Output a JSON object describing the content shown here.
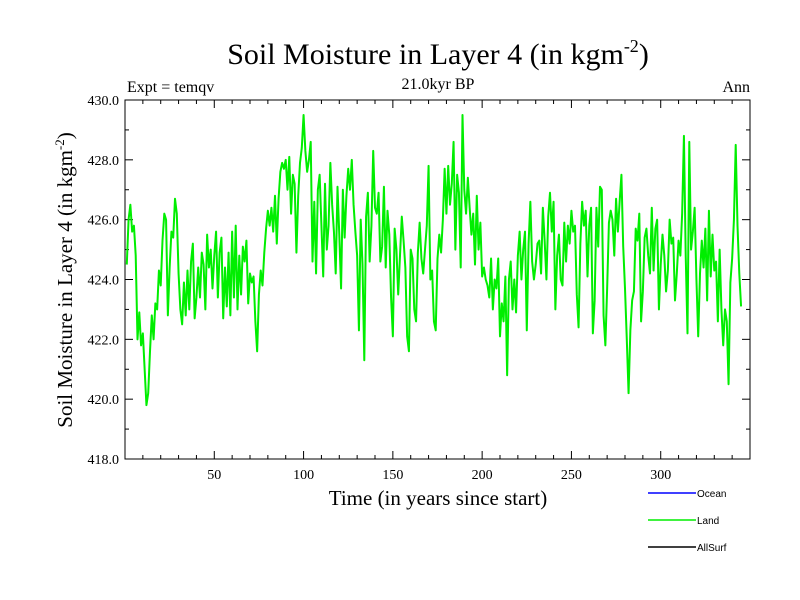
{
  "chart_data": {
    "type": "line",
    "title": "Soil Moisture in Layer 4 (in kgm",
    "title_sup": "-2",
    "title_close": ")",
    "subtitle": "21.0kyr BP",
    "left_label": "Expt = temqv",
    "right_label": "Ann",
    "xlabel": "Time (in years since start)",
    "ylabel": "Soil Moisture in Layer 4 (in kgm",
    "ylabel_sup": "-2",
    "ylabel_close": ")",
    "xlim": [
      0,
      350
    ],
    "ylim": [
      418,
      430
    ],
    "x_ticks": [
      50,
      100,
      150,
      200,
      250,
      300
    ],
    "x_tick_labels": [
      "50",
      "100",
      "150",
      "200",
      "250",
      "300"
    ],
    "y_ticks": [
      418,
      420,
      422,
      424,
      426,
      428,
      430
    ],
    "y_tick_labels": [
      "418.0",
      "420.0",
      "422.0",
      "424.0",
      "426.0",
      "428.0",
      "430.0"
    ],
    "legend": [
      {
        "name": "Ocean",
        "color": "#0000ff"
      },
      {
        "name": "Land",
        "color": "#00ee00"
      },
      {
        "name": "AllSurf",
        "color": "#000000"
      }
    ],
    "series": [
      {
        "name": "Land",
        "color": "#00ee00",
        "x_start": 1,
        "x_step": 1,
        "values": [
          424.5,
          426.0,
          426.5,
          425.6,
          425.8,
          424.8,
          422.0,
          422.9,
          421.8,
          422.2,
          421.0,
          419.8,
          420.2,
          421.6,
          422.8,
          422.0,
          423.2,
          423.0,
          424.3,
          423.8,
          425.3,
          426.2,
          426.0,
          422.8,
          424.4,
          425.6,
          425.4,
          426.7,
          426.2,
          424.2,
          423.0,
          422.5,
          423.9,
          422.8,
          424.3,
          423.0,
          424.6,
          425.2,
          422.7,
          423.4,
          424.4,
          423.4,
          424.9,
          424.5,
          423.0,
          425.5,
          424.4,
          425.0,
          423.7,
          424.8,
          425.6,
          423.4,
          424.9,
          425.4,
          422.7,
          424.4,
          423.1,
          424.9,
          422.8,
          425.6,
          423.4,
          425.8,
          423.0,
          424.8,
          423.5,
          425.1,
          424.6,
          425.3,
          423.2,
          424.2,
          423.9,
          424.1,
          422.6,
          421.6,
          423.5,
          424.3,
          423.8,
          424.9,
          425.7,
          426.3,
          425.8,
          426.4,
          425.6,
          426.8,
          425.2,
          426.7,
          427.6,
          427.9,
          427.7,
          428.0,
          427.0,
          428.1,
          426.2,
          427.5,
          427.2,
          424.9,
          426.8,
          427.9,
          428.4,
          429.5,
          428.3,
          427.6,
          428.0,
          428.6,
          424.6,
          426.6,
          424.2,
          427.0,
          427.5,
          425.8,
          424.1,
          427.2,
          425.0,
          425.8,
          427.9,
          426.5,
          425.6,
          424.2,
          427.1,
          425.5,
          423.7,
          427.0,
          425.4,
          426.8,
          427.7,
          427.0,
          428.0,
          426.5,
          425.6,
          424.8,
          422.3,
          426.0,
          424.5,
          421.3,
          426.1,
          426.9,
          424.6,
          425.8,
          428.3,
          426.4,
          426.2,
          426.9,
          424.6,
          425.1,
          427.1,
          424.4,
          426.3,
          425.5,
          423.4,
          422.1,
          425.7,
          425.0,
          423.5,
          424.8,
          426.1,
          425.3,
          424.4,
          422.1,
          421.6,
          425.0,
          424.7,
          423.0,
          422.6,
          424.9,
          425.9,
          424.7,
          424.2,
          425.0,
          425.8,
          427.8,
          424.0,
          424.3,
          422.6,
          422.3,
          424.7,
          425.5,
          424.9,
          426.0,
          427.7,
          426.2,
          427.8,
          426.5,
          427.2,
          428.6,
          425.0,
          427.5,
          426.9,
          424.4,
          429.5,
          427.0,
          426.2,
          427.4,
          426.4,
          425.5,
          426.2,
          424.5,
          426.8,
          425.0,
          425.9,
          424.1,
          424.4,
          424.0,
          423.8,
          423.4,
          424.7,
          423.0,
          424.0,
          423.7,
          424.7,
          422.1,
          423.2,
          422.6,
          424.1,
          420.8,
          424.0,
          424.6,
          423.0,
          424.0,
          422.9,
          424.8,
          425.6,
          424.0,
          425.0,
          425.6,
          422.3,
          425.2,
          426.6,
          424.6,
          424.0,
          424.5,
          425.2,
          425.3,
          424.2,
          426.4,
          425.3,
          424.0,
          426.1,
          426.9,
          425.6,
          426.6,
          423.0,
          424.8,
          425.5,
          424.0,
          423.8,
          425.9,
          424.6,
          425.8,
          425.2,
          426.3,
          425.6,
          425.8,
          423.5,
          422.4,
          425.2,
          426.6,
          425.8,
          426.3,
          424.1,
          425.8,
          426.4,
          422.2,
          423.3,
          426.4,
          425.1,
          427.1,
          427.0,
          422.8,
          421.8,
          423.7,
          425.9,
          426.3,
          426.0,
          424.8,
          426.7,
          425.6,
          426.6,
          427.5,
          425.1,
          423.7,
          422.0,
          420.2,
          422.3,
          423.3,
          423.6,
          425.7,
          425.3,
          426.2,
          422.6,
          423.6,
          425.4,
          425.7,
          424.8,
          424.2,
          426.4,
          424.3,
          425.7,
          426.0,
          423.0,
          424.5,
          425.5,
          424.8,
          423.6,
          424.3,
          426.0,
          425.2,
          425.4,
          423.3,
          424.2,
          425.3,
          424.8,
          426.2,
          428.8,
          424.8,
          422.2,
          428.6,
          425.0,
          425.6,
          426.4,
          424.0,
          422.1,
          424.2,
          425.3,
          424.4,
          425.7,
          423.3,
          426.3,
          424.1,
          425.5,
          424.3,
          424.6,
          422.6,
          425.0,
          423.0,
          421.8,
          423.0,
          422.6,
          420.5,
          423.9,
          424.7,
          426.0,
          428.5,
          425.8,
          424.2,
          423.1
        ]
      }
    ]
  }
}
